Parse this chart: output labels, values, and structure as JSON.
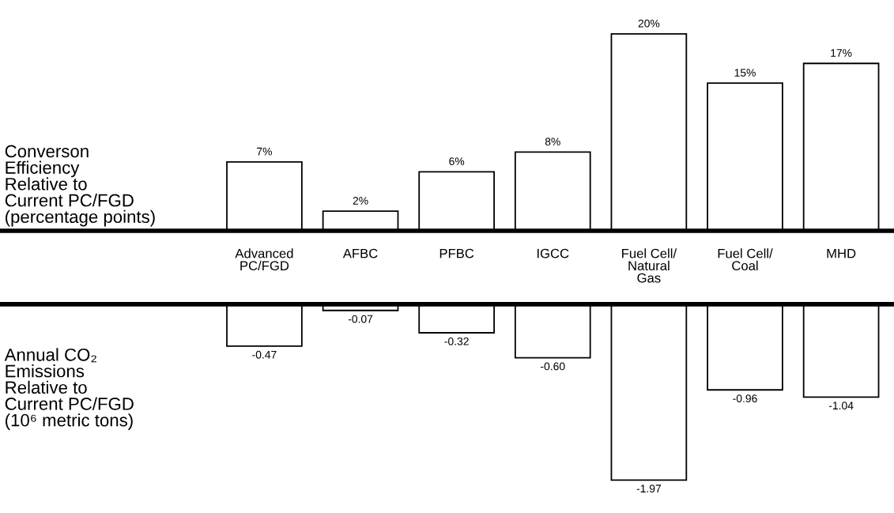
{
  "chart_data": [
    {
      "type": "bar",
      "ylabel": "Converson\nEfficiency\nRelative to\nCurrent PC/FGD\n(percentage points)",
      "categories": [
        "Advanced\nPC/FGD",
        "AFBC",
        "PFBC",
        "IGCC",
        "Fuel Cell/\nNatural\nGas",
        "Fuel Cell/\nCoal",
        "MHD"
      ],
      "values": [
        7,
        2,
        6,
        8,
        20,
        15,
        17
      ],
      "value_labels": [
        "7%",
        "2%",
        "6%",
        "8%",
        "20%",
        "15%",
        "17%"
      ],
      "color": "#ffffff",
      "tick_labels": "x"
    },
    {
      "type": "bar",
      "ylabel": "Annual CO₂\nEmissions\nRelative to\nCurrent PC/FGD\n(10⁶ metric tons)",
      "values": [
        -0.47,
        -0.07,
        -0.32,
        -0.6,
        -1.97,
        -0.96,
        -1.04
      ],
      "value_labels": [
        "-0.47",
        "-0.07",
        "-0.32",
        "-0.60",
        "-1.97",
        "-0.96",
        "-1.04"
      ],
      "color": "#ffffff",
      "tick_labels": false
    }
  ]
}
